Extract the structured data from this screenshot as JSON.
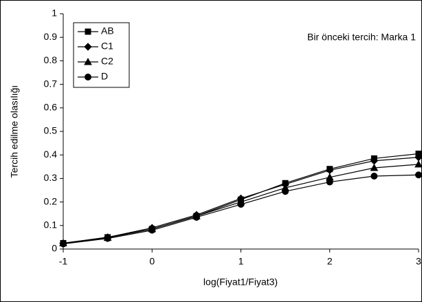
{
  "chart_data": {
    "type": "line",
    "annotation": "Bir önceki tercih: Marka 1",
    "x_label": "log(Fiyat1/Fiyat3)",
    "y_label": "Tercih edilme olasılığı",
    "x": [
      -1,
      -0.5,
      0,
      0.5,
      1,
      1.5,
      2,
      2.5,
      3
    ],
    "series": [
      {
        "name": "AB",
        "color": "#000000",
        "marker": "square",
        "values": [
          0.025,
          0.05,
          0.085,
          0.14,
          0.21,
          0.28,
          0.34,
          0.385,
          0.405
        ]
      },
      {
        "name": "C1",
        "color": "#000000",
        "marker": "diamond",
        "values": [
          0.025,
          0.05,
          0.09,
          0.145,
          0.215,
          0.275,
          0.335,
          0.375,
          0.39
        ]
      },
      {
        "name": "C2",
        "color": "#000000",
        "marker": "triangle",
        "values": [
          0.025,
          0.048,
          0.085,
          0.14,
          0.2,
          0.26,
          0.305,
          0.345,
          0.36
        ]
      },
      {
        "name": "D",
        "color": "#000000",
        "marker": "circle",
        "values": [
          0.022,
          0.045,
          0.08,
          0.135,
          0.19,
          0.245,
          0.285,
          0.31,
          0.315
        ]
      }
    ],
    "xlim": [
      -1,
      3
    ],
    "xticks": [
      -1,
      0,
      1,
      2,
      3
    ],
    "ylim": [
      0,
      1
    ],
    "yticks": [
      0,
      0.1,
      0.2,
      0.3,
      0.4,
      0.5,
      0.6,
      0.7,
      0.8,
      0.9,
      1
    ],
    "legend": "top-left"
  }
}
